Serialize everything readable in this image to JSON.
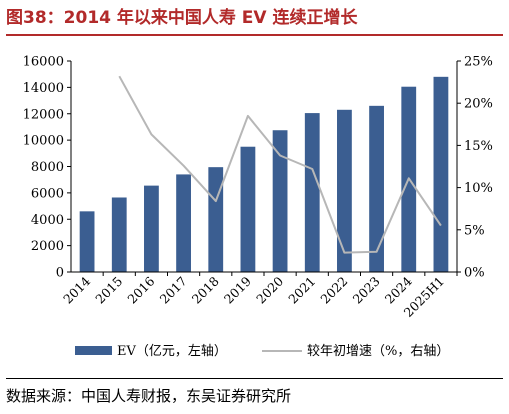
{
  "title": "图38：2014 年以来中国人寿 EV 连续正增长",
  "source": "数据来源：中国人寿财报，东吴证券研究所",
  "colors": {
    "bar": "#3b5e91",
    "line": "#b7b7b7",
    "title": "#b22a2a"
  },
  "chart_data": {
    "type": "bar",
    "categories": [
      "2014",
      "2015",
      "2016",
      "2017",
      "2018",
      "2019",
      "2020",
      "2021",
      "2022",
      "2023",
      "2024",
      "2025H1"
    ],
    "series": [
      {
        "name": "EV（亿元，左轴）",
        "type": "bar",
        "axis": "left",
        "values": [
          4600,
          5650,
          6550,
          7400,
          7950,
          9500,
          10750,
          12050,
          12300,
          12600,
          14050,
          14800
        ]
      },
      {
        "name": "较年初增速（%，右轴）",
        "type": "line",
        "axis": "right",
        "values": [
          null,
          23.2,
          16.3,
          12.6,
          8.4,
          18.5,
          13.8,
          12.2,
          2.3,
          2.4,
          11.1,
          5.5
        ]
      }
    ],
    "y_left": {
      "min": 0,
      "max": 16000,
      "ticks": [
        "0",
        "2000",
        "4000",
        "6000",
        "8000",
        "10000",
        "12000",
        "14000",
        "16000"
      ]
    },
    "y_right": {
      "min": 0,
      "max": 25,
      "ticks": [
        "0%",
        "5%",
        "10%",
        "15%",
        "20%",
        "25%"
      ]
    },
    "legend_position": "bottom",
    "grid": false
  }
}
